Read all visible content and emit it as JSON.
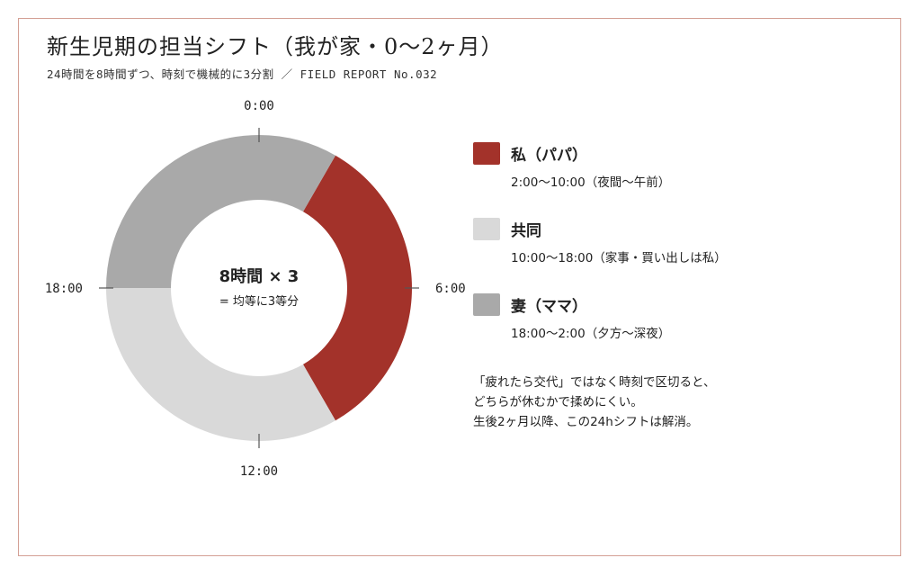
{
  "header": {
    "title": "新生児期の担当シフト（我が家・0〜2ヶ月）",
    "subtitle": "24時間を8時間ずつ、時刻で機械的に3分割 ／ FIELD REPORT No.032"
  },
  "chart_data": {
    "type": "donut",
    "unit": "hours",
    "total": 24,
    "start_hour": 0,
    "slices": [
      {
        "name": "私（パパ）",
        "start": 2,
        "end": 10,
        "value": 8,
        "color": "#a3322a"
      },
      {
        "name": "共同",
        "start": 10,
        "end": 18,
        "value": 8,
        "color": "#d9d9d9"
      },
      {
        "name": "妻（ママ）",
        "start": 18,
        "end": 26,
        "value": 8,
        "color": "#a9a9a9"
      }
    ],
    "ticks": [
      {
        "hour": 0,
        "label": "0:00"
      },
      {
        "hour": 6,
        "label": "6:00"
      },
      {
        "hour": 12,
        "label": "12:00"
      },
      {
        "hour": 18,
        "label": "18:00"
      }
    ],
    "center_main": "8時間 × 3",
    "center_sub": "= 均等に3等分"
  },
  "legend": [
    {
      "name": "私（パパ）",
      "time": "2:00〜10:00（夜間〜午前）",
      "color": "#a3322a"
    },
    {
      "name": "共同",
      "time": "10:00〜18:00（家事・買い出しは私）",
      "color": "#d9d9d9"
    },
    {
      "name": "妻（ママ）",
      "time": "18:00〜2:00（夕方〜深夜）",
      "color": "#a9a9a9"
    }
  ],
  "note": [
    "「疲れたら交代」ではなく時刻で区切ると、",
    "どちらが休むかで揉めにくい。",
    "生後2ヶ月以降、この24hシフトは解消。"
  ]
}
